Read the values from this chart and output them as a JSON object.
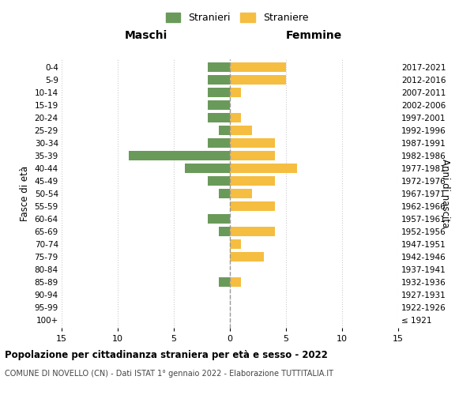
{
  "age_groups": [
    "100+",
    "95-99",
    "90-94",
    "85-89",
    "80-84",
    "75-79",
    "70-74",
    "65-69",
    "60-64",
    "55-59",
    "50-54",
    "45-49",
    "40-44",
    "35-39",
    "30-34",
    "25-29",
    "20-24",
    "15-19",
    "10-14",
    "5-9",
    "0-4"
  ],
  "birth_years": [
    "≤ 1921",
    "1922-1926",
    "1927-1931",
    "1932-1936",
    "1937-1941",
    "1942-1946",
    "1947-1951",
    "1952-1956",
    "1957-1961",
    "1962-1966",
    "1967-1971",
    "1972-1976",
    "1977-1981",
    "1982-1986",
    "1987-1991",
    "1992-1996",
    "1997-2001",
    "2002-2006",
    "2007-2011",
    "2012-2016",
    "2017-2021"
  ],
  "males": [
    0,
    0,
    0,
    1,
    0,
    0,
    0,
    1,
    2,
    0,
    1,
    2,
    4,
    9,
    2,
    1,
    2,
    2,
    2,
    2,
    2
  ],
  "females": [
    0,
    0,
    0,
    1,
    0,
    3,
    1,
    4,
    0,
    4,
    2,
    4,
    6,
    4,
    4,
    2,
    1,
    0,
    1,
    5,
    5
  ],
  "male_color": "#6a9a5a",
  "female_color": "#f5be41",
  "title": "Popolazione per cittadinanza straniera per età e sesso - 2022",
  "subtitle": "COMUNE DI NOVELLO (CN) - Dati ISTAT 1° gennaio 2022 - Elaborazione TUTTITALIA.IT",
  "xlabel_left": "Maschi",
  "xlabel_right": "Femmine",
  "ylabel_left": "Fasce di età",
  "ylabel_right": "Anni di nascita",
  "legend_male": "Stranieri",
  "legend_female": "Straniere",
  "xlim": 15,
  "background_color": "#ffffff",
  "grid_color": "#cccccc"
}
